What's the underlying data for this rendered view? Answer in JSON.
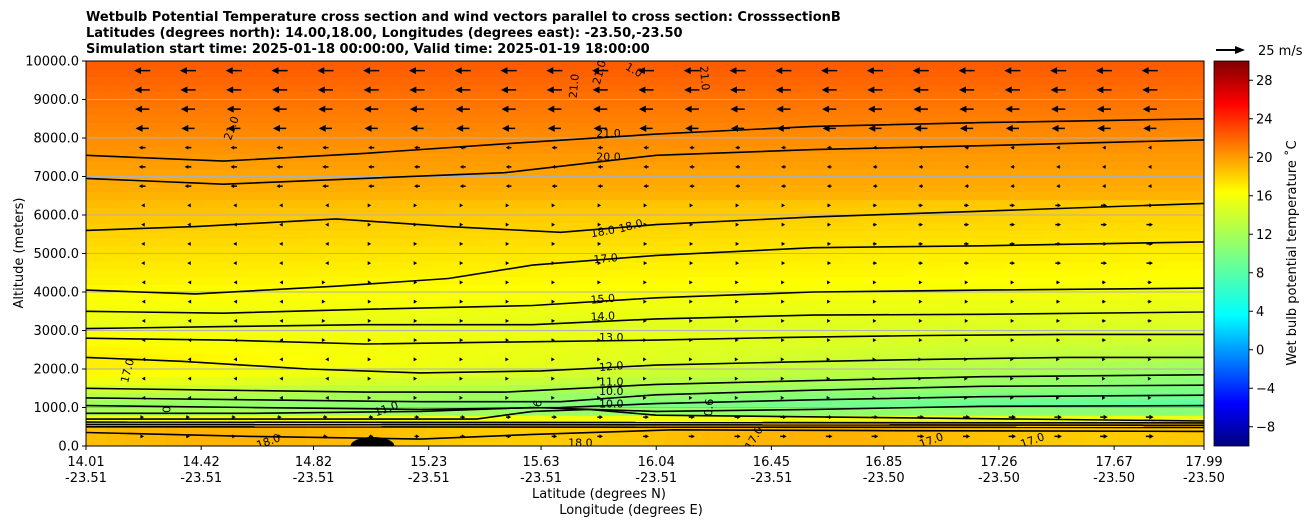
{
  "chart_data": {
    "type": "heatmap",
    "title_lines": [
      "Wetbulb Potential Temperature cross section and wind vectors parallel to cross section: CrosssectionB",
      "Latitudes (degrees north): 14.00,18.00, Longitudes (degrees east): -23.50,-23.50",
      "Simulation start time: 2025-01-18 00:00:00, Valid time: 2025-01-19 18:00:00"
    ],
    "ylabel": "Altitude (meters)",
    "xlabel_lines": [
      "Latitude (degrees N)",
      "Longitude (degrees E)"
    ],
    "ylim": [
      0,
      10000
    ],
    "yticks": [
      0,
      1000,
      2000,
      3000,
      4000,
      5000,
      6000,
      7000,
      8000,
      9000,
      10000
    ],
    "ytick_labels": [
      "0.0",
      "1000.0",
      "2000.0",
      "3000.0",
      "4000.0",
      "5000.0",
      "6000.0",
      "7000.0",
      "8000.0",
      "9000.0",
      "10000.0"
    ],
    "xlim": [
      14.01,
      17.99
    ],
    "xticks": [
      {
        "lat": "14.01",
        "lon": "-23.51"
      },
      {
        "lat": "14.42",
        "lon": "-23.51"
      },
      {
        "lat": "14.82",
        "lon": "-23.51"
      },
      {
        "lat": "15.23",
        "lon": "-23.51"
      },
      {
        "lat": "15.63",
        "lon": "-23.51"
      },
      {
        "lat": "16.04",
        "lon": "-23.51"
      },
      {
        "lat": "16.45",
        "lon": "-23.51"
      },
      {
        "lat": "16.85",
        "lon": "-23.50"
      },
      {
        "lat": "17.26",
        "lon": "-23.50"
      },
      {
        "lat": "17.67",
        "lon": "-23.50"
      },
      {
        "lat": "17.99",
        "lon": "-23.50"
      }
    ],
    "grid": "horizontal",
    "colorbar": {
      "label": "Wet bulb potential temperature ˚C",
      "range": [
        -10,
        30
      ],
      "ticks": [
        -8,
        -4,
        0,
        4,
        8,
        12,
        16,
        20,
        24,
        28
      ],
      "tick_labels": [
        "−8",
        "−4",
        "0",
        "4",
        "8",
        "12",
        "16",
        "20",
        "24",
        "28"
      ],
      "colormap": "jet"
    },
    "quiver_key": {
      "label": "25 m/s",
      "speed": 25
    },
    "contour_labels": [
      {
        "text": "21.0",
        "x": 14.53,
        "z": 8250,
        "rot": -70
      },
      {
        "text": "21.0",
        "x": 15.75,
        "z": 9350,
        "rot": -85
      },
      {
        "text": "21.0",
        "x": 15.84,
        "z": 9700,
        "rot": -75
      },
      {
        "text": "1.0",
        "x": 15.96,
        "z": 9750,
        "rot": 30
      },
      {
        "text": "21.0",
        "x": 16.21,
        "z": 9550,
        "rot": 85
      },
      {
        "text": "21.0",
        "x": 15.87,
        "z": 8100,
        "rot": 0
      },
      {
        "text": "20.0",
        "x": 15.87,
        "z": 7500,
        "rot": 0
      },
      {
        "text": "18.0",
        "x": 15.85,
        "z": 5550,
        "rot": -10
      },
      {
        "text": "18.0",
        "x": 15.95,
        "z": 5700,
        "rot": -15
      },
      {
        "text": "17.0",
        "x": 15.86,
        "z": 4850,
        "rot": -5
      },
      {
        "text": "15.0",
        "x": 15.85,
        "z": 3800,
        "rot": -5
      },
      {
        "text": "14.0",
        "x": 15.85,
        "z": 3350,
        "rot": -3
      },
      {
        "text": "13.0",
        "x": 15.88,
        "z": 2800,
        "rot": 0
      },
      {
        "text": "12.0",
        "x": 15.88,
        "z": 2050,
        "rot": -5
      },
      {
        "text": "11.0",
        "x": 15.88,
        "z": 1650,
        "rot": 0
      },
      {
        "text": "10.0",
        "x": 15.88,
        "z": 1400,
        "rot": 0
      },
      {
        "text": "10.0",
        "x": 15.88,
        "z": 1080,
        "rot": 0
      },
      {
        "text": "17.0",
        "x": 14.16,
        "z": 1950,
        "rot": -75
      },
      {
        "text": "0",
        "x": 14.3,
        "z": 950,
        "rot": -90
      },
      {
        "text": "11.0",
        "x": 15.08,
        "z": 950,
        "rot": -20
      },
      {
        "text": "6",
        "x": 15.62,
        "z": 1100,
        "rot": -80
      },
      {
        "text": "0.6",
        "x": 16.23,
        "z": 1000,
        "rot": -85
      },
      {
        "text": "18.0",
        "x": 14.66,
        "z": 100,
        "rot": -20
      },
      {
        "text": "18.0",
        "x": 15.77,
        "z": 60,
        "rot": 0
      },
      {
        "text": "17.0",
        "x": 16.39,
        "z": 200,
        "rot": -60
      },
      {
        "text": "17.0",
        "x": 17.02,
        "z": 130,
        "rot": -20
      },
      {
        "text": "17.0",
        "x": 17.38,
        "z": 130,
        "rot": -20
      }
    ]
  }
}
